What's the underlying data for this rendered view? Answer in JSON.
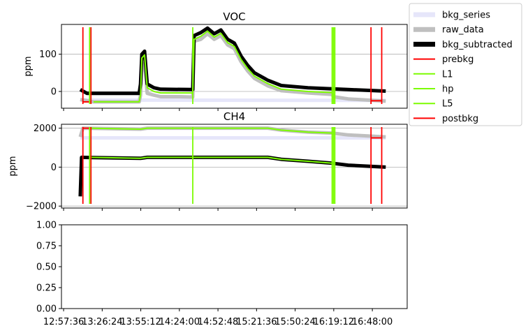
{
  "chart_data": [
    {
      "type": "line",
      "title": "VOC",
      "xlabel": "",
      "ylabel": "ppm",
      "ylim": [
        -45,
        180
      ],
      "yticks": [
        0,
        100
      ],
      "grid": "horizontal",
      "series": [
        {
          "name": "bkg_series",
          "color": "#e6e6fa",
          "points": [
            [
              "13:10",
              -22
            ],
            [
              "13:20",
              -23
            ],
            [
              "16:52",
              -24
            ],
            [
              "16:58",
              -24
            ]
          ]
        },
        {
          "name": "raw_data",
          "color": "#bfbfbf",
          "points": [
            [
              "13:10",
              -22
            ],
            [
              "13:20",
              -28
            ],
            [
              "13:54",
              -28
            ],
            [
              "13:55",
              -10
            ],
            [
              "13:56",
              70
            ],
            [
              "13:58",
              75
            ],
            [
              "14:00",
              -5
            ],
            [
              "14:05",
              -10
            ],
            [
              "14:10",
              -14
            ],
            [
              "14:24",
              -14
            ],
            [
              "14:34",
              -15
            ],
            [
              "14:35",
              135
            ],
            [
              "14:40",
              140
            ],
            [
              "14:45",
              155
            ],
            [
              "14:50",
              140
            ],
            [
              "14:55",
              150
            ],
            [
              "15:00",
              125
            ],
            [
              "15:05",
              115
            ],
            [
              "15:10",
              80
            ],
            [
              "15:15",
              55
            ],
            [
              "15:20",
              35
            ],
            [
              "15:30",
              15
            ],
            [
              "15:40",
              2
            ],
            [
              "16:00",
              -4
            ],
            [
              "16:18",
              -8
            ],
            [
              "16:19",
              -14
            ],
            [
              "16:30",
              -20
            ],
            [
              "16:58",
              -26
            ]
          ]
        },
        {
          "name": "bkg_subtracted",
          "color": "#000000",
          "points": [
            [
              "13:10",
              5
            ],
            [
              "13:15",
              -5
            ],
            [
              "13:54",
              -5
            ],
            [
              "13:55",
              20
            ],
            [
              "13:56",
              100
            ],
            [
              "13:58",
              108
            ],
            [
              "14:00",
              20
            ],
            [
              "14:05",
              10
            ],
            [
              "14:10",
              6
            ],
            [
              "14:34",
              5
            ],
            [
              "14:35",
              150
            ],
            [
              "14:40",
              158
            ],
            [
              "14:45",
              170
            ],
            [
              "14:50",
              155
            ],
            [
              "14:55",
              165
            ],
            [
              "15:00",
              140
            ],
            [
              "15:05",
              130
            ],
            [
              "15:10",
              95
            ],
            [
              "15:15",
              70
            ],
            [
              "15:20",
              50
            ],
            [
              "15:30",
              30
            ],
            [
              "15:40",
              16
            ],
            [
              "16:00",
              10
            ],
            [
              "16:18",
              7
            ],
            [
              "16:30",
              5
            ],
            [
              "16:58",
              1
            ]
          ]
        }
      ],
      "segments": [
        {
          "name": "L1",
          "color": "#7cfc00",
          "points": [
            [
              "13:20",
              -28
            ],
            [
              "13:54",
              -28
            ],
            [
              "13:55",
              -10
            ],
            [
              "13:56",
              90
            ],
            [
              "13:58",
              98
            ],
            [
              "14:00",
              10
            ],
            [
              "14:05",
              0
            ],
            [
              "14:10",
              -4
            ],
            [
              "14:34",
              -4
            ],
            [
              "14:35",
              140
            ],
            [
              "14:40",
              148
            ],
            [
              "14:45",
              162
            ],
            [
              "14:50",
              146
            ],
            [
              "14:55",
              156
            ],
            [
              "15:00",
              131
            ],
            [
              "15:05",
              121
            ],
            [
              "15:10",
              86
            ],
            [
              "15:15",
              61
            ],
            [
              "15:20",
              41
            ],
            [
              "15:30",
              21
            ],
            [
              "15:40",
              6
            ],
            [
              "16:00",
              0
            ],
            [
              "16:18",
              -3
            ]
          ]
        }
      ],
      "markers": [
        {
          "name": "prebkg",
          "color": "#ff0000",
          "times": [
            "13:12",
            "13:18"
          ],
          "y": -28
        },
        {
          "name": "L1",
          "color": "#7cfc00",
          "times": [
            "13:17"
          ]
        },
        {
          "name": "hp",
          "color": "#7cfc00",
          "times": [
            "14:34"
          ]
        },
        {
          "name": "L5",
          "color": "#7cfc00",
          "times": [
            "16:18",
            "16:19",
            "16:20"
          ]
        },
        {
          "name": "postbkg",
          "color": "#ff0000",
          "times": [
            "16:47",
            "16:55"
          ],
          "y": -25
        }
      ]
    },
    {
      "type": "line",
      "title": "CH4",
      "xlabel": "",
      "ylabel": "ppm",
      "ylim": [
        -2100,
        2200
      ],
      "yticks": [
        -2000,
        0,
        2000
      ],
      "grid": "horizontal",
      "series": [
        {
          "name": "bkg_series",
          "color": "#e6e6fa",
          "points": [
            [
              "13:10",
              1500
            ],
            [
              "16:58",
              1500
            ]
          ]
        },
        {
          "name": "raw_data",
          "color": "#bfbfbf",
          "points": [
            [
              "13:10",
              1550
            ],
            [
              "13:12",
              2000
            ],
            [
              "13:55",
              1950
            ],
            [
              "14:00",
              2000
            ],
            [
              "15:30",
              2000
            ],
            [
              "15:40",
              1900
            ],
            [
              "16:00",
              1800
            ],
            [
              "16:18",
              1750
            ],
            [
              "16:30",
              1650
            ],
            [
              "16:58",
              1550
            ]
          ]
        },
        {
          "name": "bkg_subtracted",
          "color": "#000000",
          "points": [
            [
              "13:10",
              -1500
            ],
            [
              "13:11",
              500
            ],
            [
              "13:55",
              450
            ],
            [
              "14:00",
              500
            ],
            [
              "15:30",
              500
            ],
            [
              "15:40",
              400
            ],
            [
              "16:00",
              300
            ],
            [
              "16:18",
              200
            ],
            [
              "16:30",
              100
            ],
            [
              "16:58",
              0
            ]
          ]
        }
      ],
      "segments": [
        {
          "name": "L1",
          "color": "#7cfc00",
          "points": [
            [
              "13:17",
              2000
            ],
            [
              "13:55",
              1950
            ],
            [
              "14:00",
              2000
            ],
            [
              "15:30",
              2000
            ],
            [
              "15:40",
              1900
            ],
            [
              "16:00",
              1800
            ],
            [
              "16:18",
              1750
            ]
          ]
        },
        {
          "name": "L1",
          "color": "#7cfc00",
          "points": [
            [
              "13:17",
              500
            ],
            [
              "13:55",
              450
            ],
            [
              "14:00",
              500
            ],
            [
              "15:30",
              500
            ],
            [
              "15:40",
              400
            ],
            [
              "16:00",
              300
            ],
            [
              "16:18",
              200
            ]
          ]
        }
      ],
      "markers": [
        {
          "name": "prebkg",
          "color": "#ff0000",
          "times": [
            "13:12",
            "13:18"
          ],
          "y": 2000
        },
        {
          "name": "L1",
          "color": "#7cfc00",
          "times": [
            "13:17"
          ]
        },
        {
          "name": "hp",
          "color": "#7cfc00",
          "times": [
            "14:34"
          ]
        },
        {
          "name": "L5",
          "color": "#7cfc00",
          "times": [
            "16:18",
            "16:19",
            "16:20"
          ]
        },
        {
          "name": "postbkg",
          "color": "#ff0000",
          "times": [
            "16:47",
            "16:55"
          ],
          "y": 1500
        }
      ]
    },
    {
      "type": "line",
      "title": "",
      "xlabel": "",
      "ylabel": "",
      "ylim": [
        0,
        1
      ],
      "yticks": [
        0.0,
        0.25,
        0.5,
        0.75,
        1.0
      ],
      "ytick_labels": [
        "0.00",
        "0.25",
        "0.50",
        "0.75",
        "1.00"
      ],
      "series": []
    }
  ],
  "x_axis": {
    "domain": [
      "12:56",
      "17:14"
    ],
    "ticks": [
      "12:57:36",
      "13:26:24",
      "13:55:12",
      "14:24:00",
      "14:52:48",
      "15:21:36",
      "15:50:24",
      "16:19:12",
      "16:48:00"
    ]
  },
  "legend": {
    "placement": "right",
    "entries": [
      {
        "label": "bkg_series",
        "color": "#e6e6fa"
      },
      {
        "label": "raw_data",
        "color": "#bfbfbf"
      },
      {
        "label": "bkg_subtracted",
        "color": "#000000"
      },
      {
        "label": "prebkg",
        "color": "#ff0000"
      },
      {
        "label": "L1",
        "color": "#7cfc00"
      },
      {
        "label": "hp",
        "color": "#7cfc00"
      },
      {
        "label": "L5",
        "color": "#7cfc00"
      },
      {
        "label": "postbkg",
        "color": "#ff0000"
      }
    ]
  }
}
